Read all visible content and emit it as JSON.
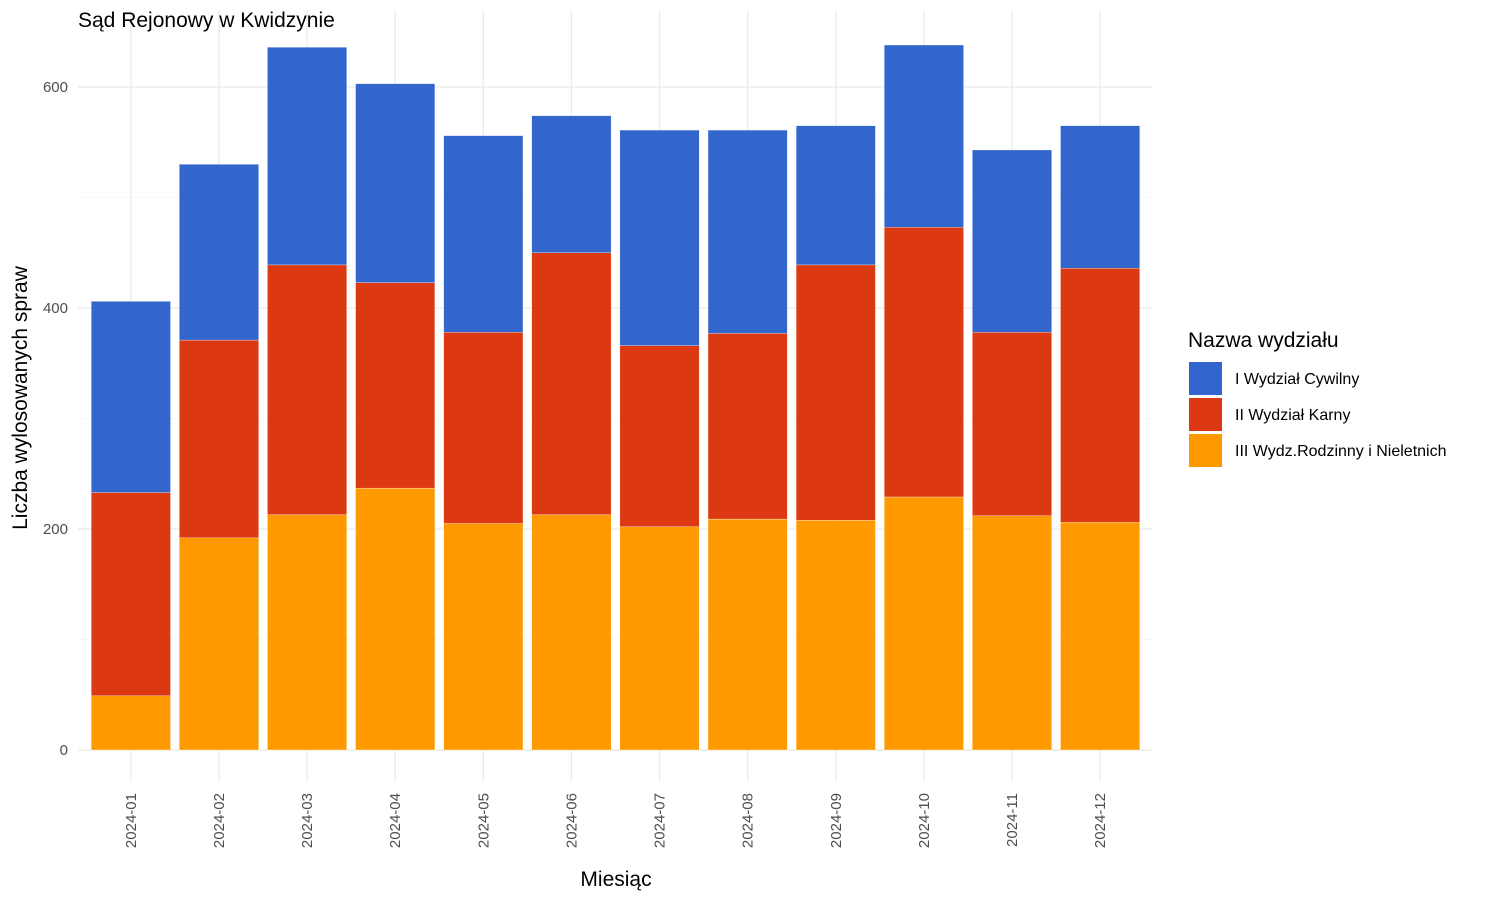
{
  "chart_data": {
    "type": "bar",
    "stacked": true,
    "title": "Sąd Rejonowy w Kwidzynie",
    "xlabel": "Miesiąc",
    "ylabel": "Liczba wylosowanych spraw",
    "ylim": [
      0,
      650
    ],
    "yticks": [
      0,
      200,
      400,
      600
    ],
    "grid": true,
    "legend": {
      "title": "Nazwa wydziału",
      "position": "right"
    },
    "categories": [
      "2024-01",
      "2024-02",
      "2024-03",
      "2024-04",
      "2024-05",
      "2024-06",
      "2024-07",
      "2024-08",
      "2024-09",
      "2024-10",
      "2024-11",
      "2024-12"
    ],
    "series": [
      {
        "name": "III Wydz.Rodzinny i Nieletnich",
        "color": "#ff9900",
        "values": [
          49,
          192,
          213,
          237,
          205,
          213,
          202,
          209,
          208,
          229,
          212,
          206
        ]
      },
      {
        "name": "II Wydział Karny",
        "color": "#dc3912",
        "values": [
          184,
          179,
          226,
          186,
          173,
          237,
          164,
          168,
          231,
          244,
          166,
          230
        ]
      },
      {
        "name": "I Wydział Cywilny",
        "color": "#3366cc",
        "values": [
          173,
          159,
          197,
          180,
          178,
          124,
          195,
          184,
          126,
          165,
          165,
          129
        ]
      }
    ],
    "legend_order": [
      "I Wydział Cywilny",
      "II Wydział Karny",
      "III Wydz.Rodzinny i Nieletnich"
    ]
  }
}
